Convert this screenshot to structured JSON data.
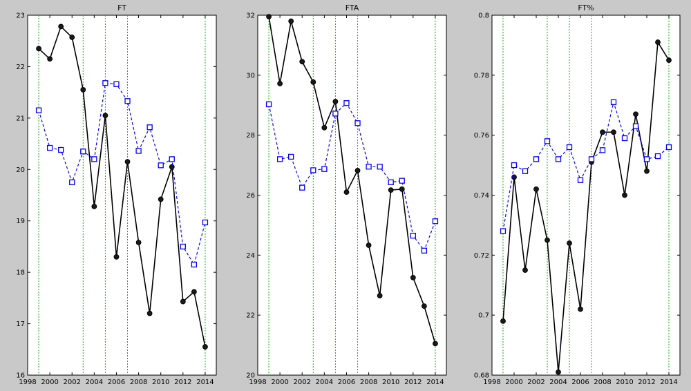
{
  "chart_data": [
    {
      "type": "line",
      "title": "FT",
      "xlabel": "",
      "ylabel": "",
      "xlim": [
        1998,
        2015
      ],
      "ylim": [
        16,
        23
      ],
      "x_ticks": [
        1998,
        2000,
        2002,
        2004,
        2006,
        2008,
        2010,
        2012,
        2014
      ],
      "y_ticks": [
        16,
        17,
        18,
        19,
        20,
        21,
        22,
        23
      ],
      "x_tick_labels": [
        "1998",
        "2000",
        "2002",
        "2004",
        "2006",
        "2008",
        "2010",
        "2012",
        "2014"
      ],
      "y_tick_labels": [
        "16",
        "17",
        "18",
        "19",
        "20",
        "21",
        "22",
        "23"
      ],
      "vertical_lines": [
        1999,
        2003,
        2005,
        2007,
        2014
      ],
      "x": [
        1999,
        2000,
        2001,
        2002,
        2003,
        2004,
        2005,
        2006,
        2007,
        2008,
        2009,
        2010,
        2011,
        2012,
        2013,
        2014
      ],
      "series": [
        {
          "values": [
            22.35,
            22.15,
            22.78,
            22.57,
            21.55,
            19.28,
            21.05,
            18.3,
            20.15,
            18.58,
            17.2,
            19.42,
            20.05,
            17.43,
            17.62,
            16.55
          ]
        },
        {
          "values": [
            21.15,
            20.42,
            20.38,
            19.75,
            20.35,
            20.2,
            21.68,
            21.66,
            21.33,
            20.36,
            20.82,
            20.08,
            20.2,
            18.5,
            18.15,
            18.97
          ]
        }
      ]
    },
    {
      "type": "line",
      "title": "FTA",
      "xlabel": "",
      "ylabel": "",
      "xlim": [
        1998,
        2015
      ],
      "ylim": [
        20,
        32
      ],
      "x_ticks": [
        1998,
        2000,
        2002,
        2004,
        2006,
        2008,
        2010,
        2012,
        2014
      ],
      "y_ticks": [
        20,
        22,
        24,
        26,
        28,
        30,
        32
      ],
      "x_tick_labels": [
        "1998",
        "2000",
        "2002",
        "2004",
        "2006",
        "2008",
        "2010",
        "2012",
        "2014"
      ],
      "y_tick_labels": [
        "20",
        "22",
        "24",
        "26",
        "28",
        "30",
        "32"
      ],
      "vertical_lines": [
        1999,
        2003,
        2005,
        2007,
        2014
      ],
      "x": [
        1999,
        2000,
        2001,
        2002,
        2003,
        2004,
        2005,
        2006,
        2007,
        2008,
        2009,
        2010,
        2011,
        2012,
        2013,
        2014
      ],
      "series": [
        {
          "values": [
            31.95,
            29.72,
            31.8,
            30.45,
            29.77,
            28.25,
            29.12,
            26.1,
            26.82,
            24.33,
            22.65,
            26.17,
            26.2,
            23.25,
            22.3,
            21.05
          ]
        },
        {
          "values": [
            29.03,
            27.2,
            27.28,
            26.25,
            26.83,
            26.87,
            28.72,
            29.07,
            28.4,
            26.95,
            26.95,
            26.43,
            26.48,
            24.65,
            24.15,
            25.13
          ]
        }
      ]
    },
    {
      "type": "line",
      "title": "FT%",
      "xlabel": "",
      "ylabel": "",
      "xlim": [
        1998,
        2015
      ],
      "ylim": [
        0.68,
        0.8
      ],
      "x_ticks": [
        1998,
        2000,
        2002,
        2004,
        2006,
        2008,
        2010,
        2012,
        2014
      ],
      "y_ticks": [
        0.68,
        0.7,
        0.72,
        0.74,
        0.76,
        0.78,
        0.8
      ],
      "x_tick_labels": [
        "1998",
        "2000",
        "2002",
        "2004",
        "2006",
        "2008",
        "2010",
        "2012",
        "2014"
      ],
      "y_tick_labels": [
        "0.68",
        "0.7",
        "0.72",
        "0.74",
        "0.76",
        "0.78",
        "0.8"
      ],
      "vertical_lines": [
        1999,
        2003,
        2005,
        2007,
        2014
      ],
      "x": [
        1999,
        2000,
        2001,
        2002,
        2003,
        2004,
        2005,
        2006,
        2007,
        2008,
        2009,
        2010,
        2011,
        2012,
        2013,
        2014
      ],
      "series": [
        {
          "values": [
            0.698,
            0.746,
            0.715,
            0.742,
            0.725,
            0.681,
            0.724,
            0.702,
            0.751,
            0.761,
            0.761,
            0.74,
            0.767,
            0.748,
            0.791,
            0.785
          ]
        },
        {
          "values": [
            0.728,
            0.75,
            0.748,
            0.752,
            0.758,
            0.752,
            0.756,
            0.745,
            0.752,
            0.755,
            0.771,
            0.759,
            0.763,
            0.752,
            0.753,
            0.756
          ]
        }
      ]
    }
  ],
  "colors": {
    "figure_background": "#c9c9c9",
    "axes_background": "#ffffff",
    "series_1": "#000000",
    "series_1_marker_fill": "#1a1a1a",
    "series_2": "#0000ff",
    "series_2_marker_fill": "#ffffff",
    "vertical_lines": "#00bb00"
  },
  "style": {
    "series_1": "solid line, filled circle markers",
    "series_2": "dashed line, open square markers",
    "vertical_lines": "dotted"
  }
}
